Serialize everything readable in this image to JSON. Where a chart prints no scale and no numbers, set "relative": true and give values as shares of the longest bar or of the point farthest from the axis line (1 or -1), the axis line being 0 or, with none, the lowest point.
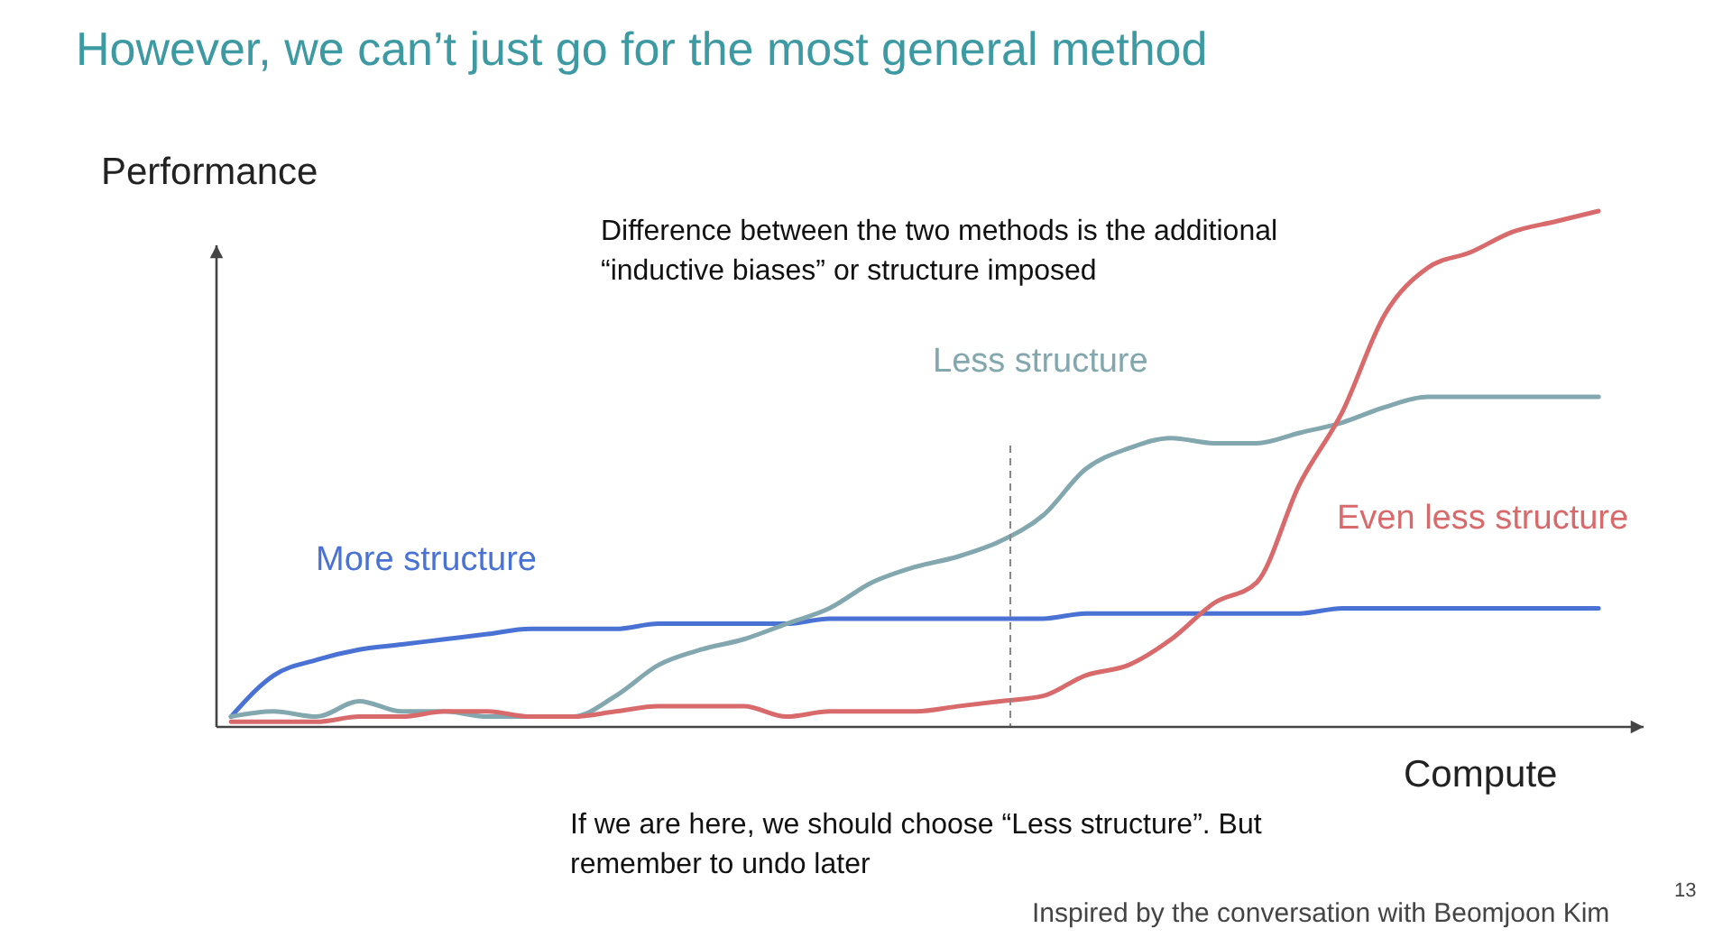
{
  "chart_data": {
    "type": "line",
    "relative": true,
    "title": "However, we can’t just go for the most general method",
    "ylabel": "Performance",
    "xlabel": "Compute",
    "categories": [
      null,
      null,
      null,
      null,
      null,
      null,
      null,
      null,
      null,
      null,
      null,
      null,
      null,
      null,
      null,
      null,
      null,
      null,
      null,
      null,
      null,
      null,
      null,
      null,
      null,
      null,
      null,
      null,
      null,
      null,
      null,
      null,
      null
    ],
    "series": [
      {
        "name": "More structure",
        "color": "#4a72d4",
        "values": [
          0.02,
          0.1,
          0.13,
          0.15,
          0.16,
          0.17,
          0.18,
          0.19,
          0.19,
          0.19,
          0.2,
          0.2,
          0.2,
          0.2,
          0.21,
          0.21,
          0.21,
          0.21,
          0.21,
          0.21,
          0.22,
          0.22,
          0.22,
          0.22,
          0.22,
          0.22,
          0.23,
          0.23,
          0.23,
          0.23,
          0.23,
          0.23,
          0.23
        ]
      },
      {
        "name": "Less structure",
        "color": "#82a7ae",
        "values": [
          0.02,
          0.03,
          0.02,
          0.05,
          0.03,
          0.03,
          0.02,
          0.02,
          0.02,
          0.06,
          0.12,
          0.15,
          0.17,
          0.2,
          0.23,
          0.28,
          0.31,
          0.33,
          0.36,
          0.41,
          0.5,
          0.54,
          0.56,
          0.55,
          0.55,
          0.57,
          0.59,
          0.62,
          0.64,
          0.64,
          0.64,
          0.64,
          0.64
        ]
      },
      {
        "name": "Even less structure",
        "color": "#d96a6b",
        "values": [
          0.01,
          0.01,
          0.01,
          0.02,
          0.02,
          0.03,
          0.03,
          0.02,
          0.02,
          0.03,
          0.04,
          0.04,
          0.04,
          0.02,
          0.03,
          0.03,
          0.03,
          0.04,
          0.05,
          0.06,
          0.1,
          0.12,
          0.17,
          0.24,
          0.28,
          0.47,
          0.61,
          0.8,
          0.89,
          0.92,
          0.96,
          0.98,
          1.0
        ]
      }
    ],
    "annotations": [
      "Difference between the two methods is the additional\n“inductive biases” or structure imposed",
      "If we are here, we should choose “Less structure”. But\nremember to undo later",
      "Inspired by the conversation with Beomjoon Kim",
      "13"
    ]
  }
}
